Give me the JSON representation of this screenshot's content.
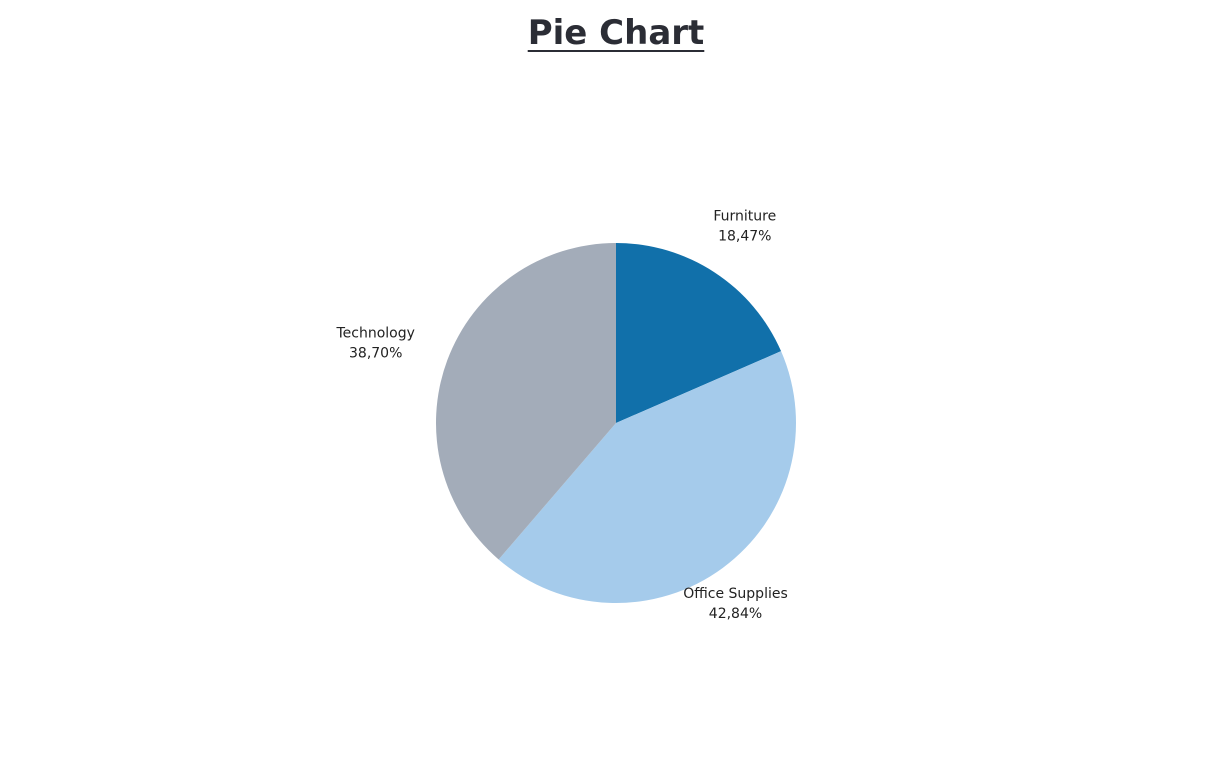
{
  "chart_data": {
    "type": "pie",
    "title": "Pie Chart",
    "slices": [
      {
        "label": "Furniture",
        "percent_label": "18,47%",
        "value": 18.47,
        "color": "#1170AA"
      },
      {
        "label": "Office Supplies",
        "percent_label": "42,84%",
        "value": 42.84,
        "color": "#A5CBEB"
      },
      {
        "label": "Technology",
        "percent_label": "38,70%",
        "value": 38.7,
        "color": "#A3ACB9"
      }
    ],
    "start_angle": "12 o'clock",
    "direction": "clockwise"
  }
}
